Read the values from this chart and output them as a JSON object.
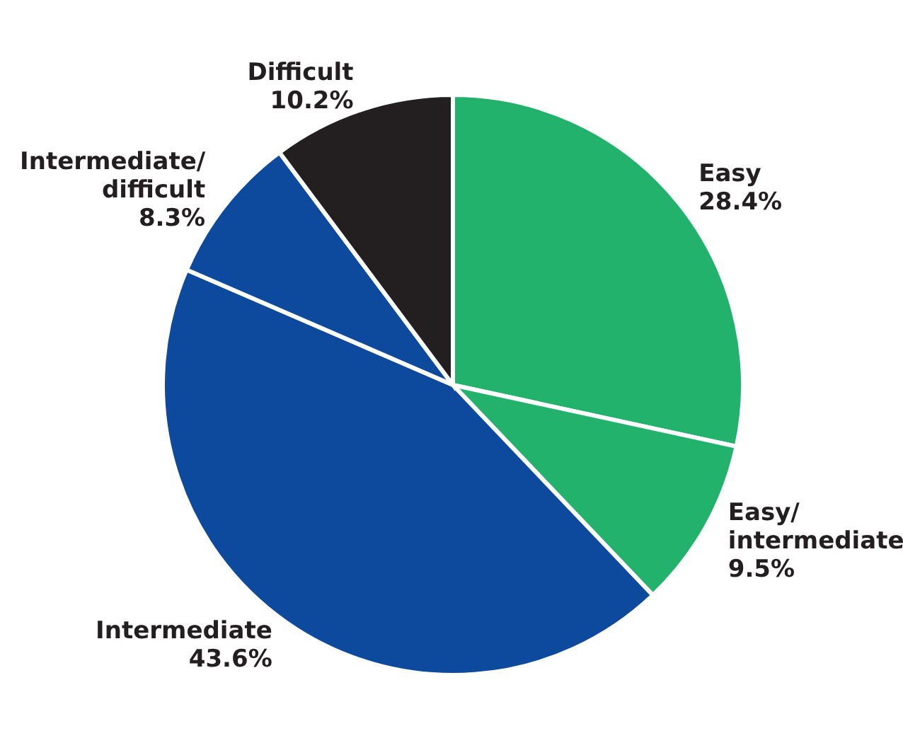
{
  "chart_data": {
    "type": "pie",
    "categories": [
      "Easy",
      "Easy/intermediate",
      "Intermediate",
      "Intermediate/difficult",
      "Difficult"
    ],
    "values": [
      28.4,
      9.5,
      43.6,
      8.3,
      10.2
    ],
    "colors": [
      "#22b26b",
      "#22b26b",
      "#0d4a9e",
      "#0d4a9e",
      "#231f20"
    ],
    "value_labels": [
      "28.4%",
      "9.5%",
      "43.6%",
      "8.3%",
      "10.2%"
    ]
  }
}
